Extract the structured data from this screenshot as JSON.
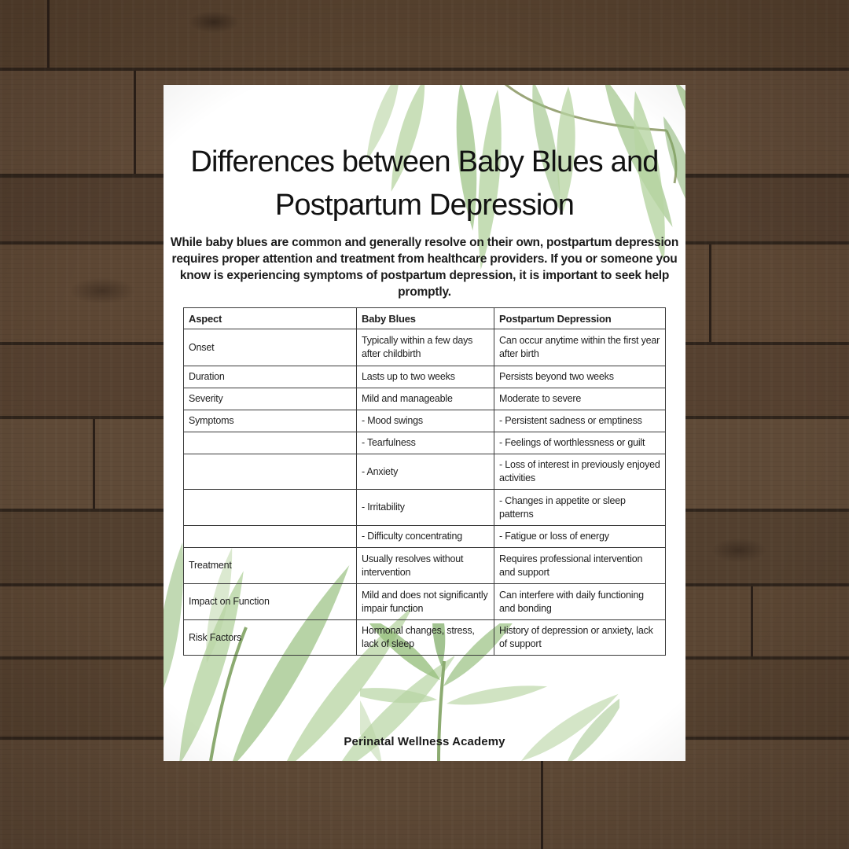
{
  "page": {
    "title_line1": "Differences between Baby Blues and",
    "title_line2": "Postpartum Depression",
    "intro": "While baby blues are common and generally resolve on their own, postpartum depression requires proper attention and treatment from healthcare providers. If you or someone you know is experiencing symptoms of postpartum depression, it is important to seek help promptly.",
    "footer": "Perinatal Wellness Academy"
  },
  "table": {
    "headers": [
      "Aspect",
      "Baby Blues",
      "Postpartum Depression"
    ],
    "rows": [
      [
        "Onset",
        "Typically within a few days after childbirth",
        "Can occur anytime within the first year after birth"
      ],
      [
        "Duration",
        "Lasts up to two weeks",
        "Persists beyond two weeks"
      ],
      [
        "Severity",
        "Mild and manageable",
        "Moderate to severe"
      ],
      [
        "Symptoms",
        "- Mood swings",
        "- Persistent sadness or emptiness"
      ],
      [
        "",
        "- Tearfulness",
        "- Feelings of worthlessness or guilt"
      ],
      [
        "",
        "- Anxiety",
        "- Loss of interest in previously enjoyed activities"
      ],
      [
        "",
        "- Irritability",
        "- Changes in appetite or sleep patterns"
      ],
      [
        "",
        "- Difficulty concentrating",
        "- Fatigue or loss of energy"
      ],
      [
        "Treatment",
        "Usually resolves without intervention",
        "Requires professional intervention and support"
      ],
      [
        "Impact on Function",
        "Mild and does not significantly impair function",
        "Can interfere with daily functioning and bonding"
      ],
      [
        "Risk Factors",
        "Hormonal changes, stress, lack of sleep",
        "History of depression or anxiety, lack of support"
      ]
    ]
  },
  "colors": {
    "page_background": "#ffffff",
    "wood_base": "#5a4533",
    "wood_seam": "#2a1f18",
    "table_border": "#3a3a3a",
    "text": "#1e1e1e",
    "leaf_light": "#b7d4a2",
    "leaf_mid": "#98c080",
    "leaf_dark": "#7aa962"
  }
}
